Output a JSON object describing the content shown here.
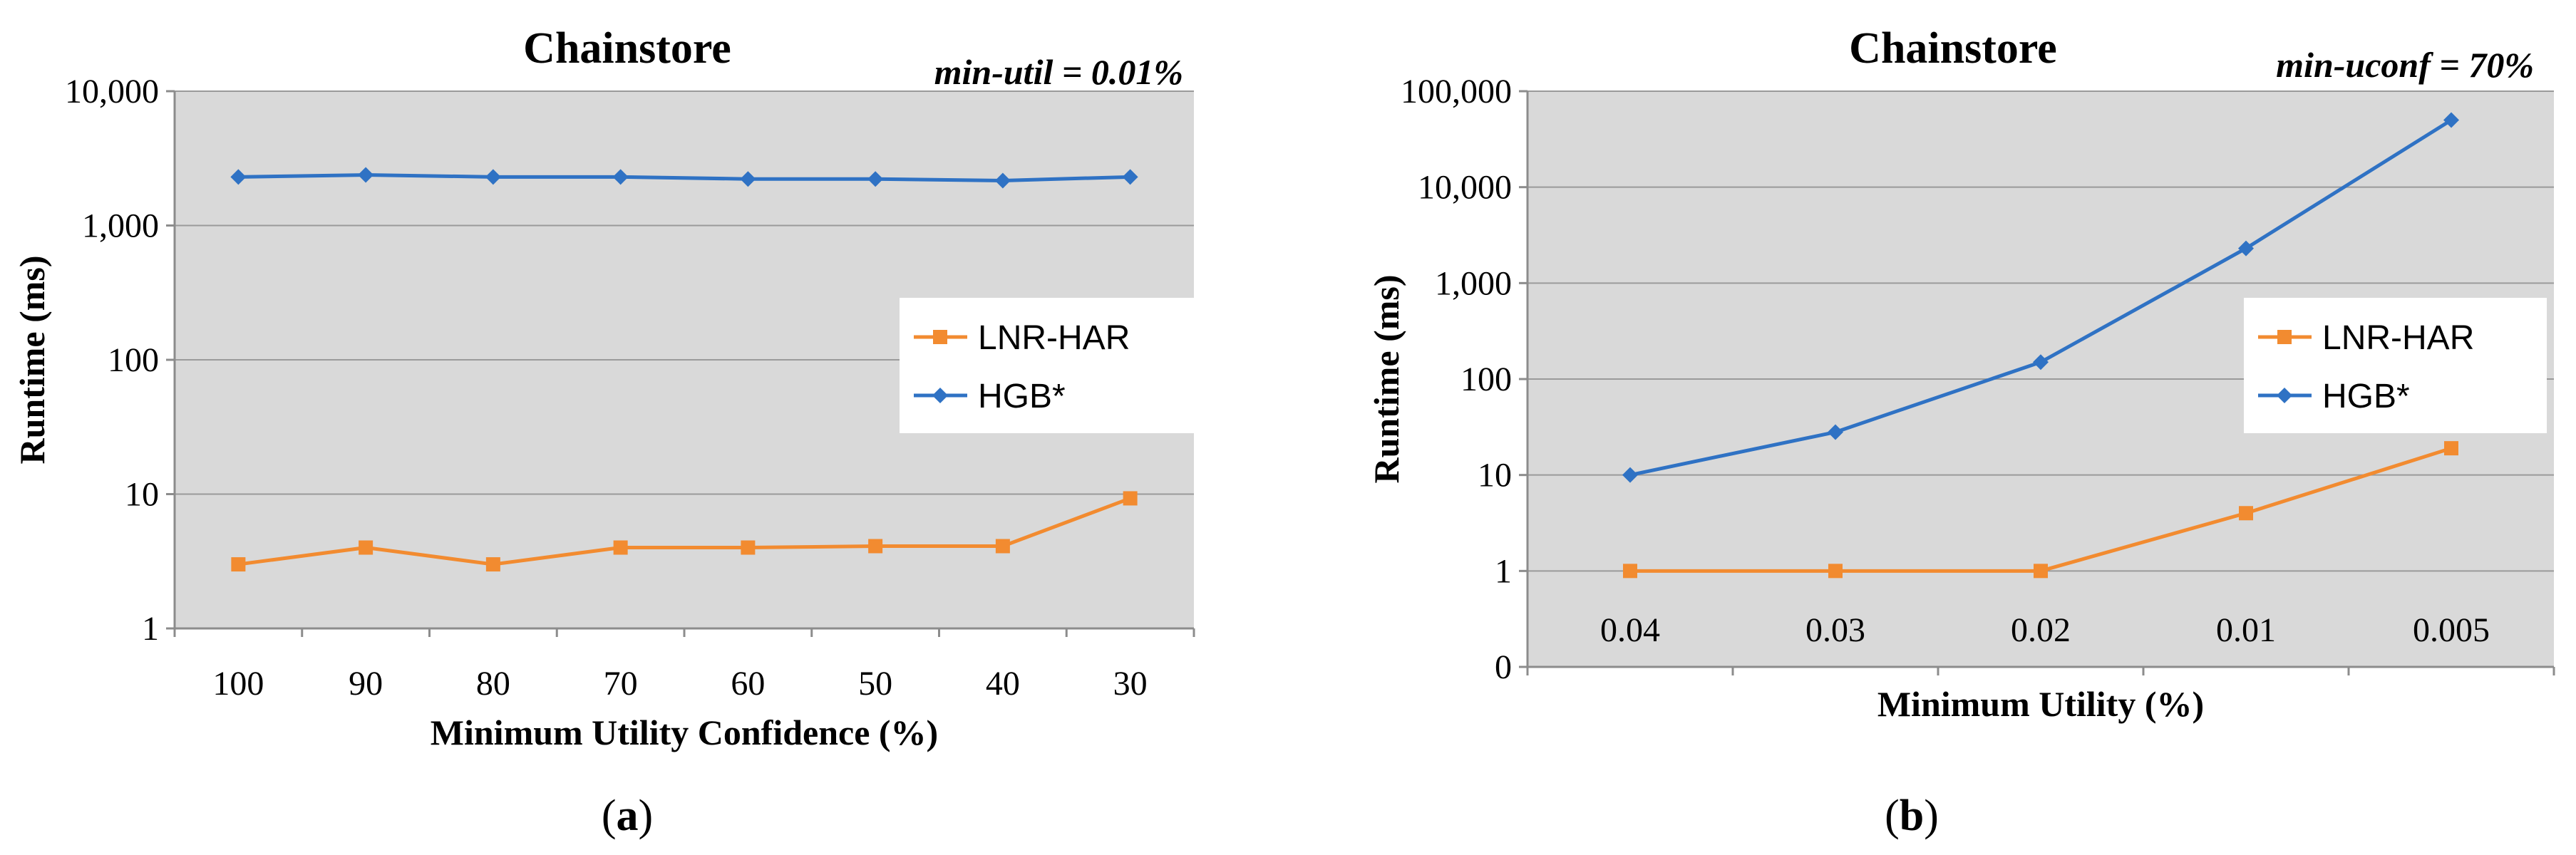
{
  "chart_data": [
    {
      "type": "line",
      "title": "Chainstore",
      "annotation": "min-util = 0.01%",
      "xlabel": "Minimum Utility Confidence (%)",
      "ylabel": "Runtime (ms)",
      "yscale": "log",
      "ylim": [
        1,
        10000
      ],
      "yticks": [
        1,
        10,
        100,
        1000,
        10000
      ],
      "ytick_labels": [
        "1",
        "10",
        "100",
        "1,000",
        "10,000"
      ],
      "categories": [
        "100",
        "90",
        "80",
        "70",
        "60",
        "50",
        "40",
        "30"
      ],
      "series": [
        {
          "name": "LNR-HAR",
          "color": "#f28b30",
          "marker": "square",
          "values": [
            3.0,
            4.0,
            3.0,
            4.0,
            4.0,
            4.1,
            4.1,
            9.3
          ]
        },
        {
          "name": "HGB*",
          "color": "#2f72c4",
          "marker": "diamond",
          "values": [
            2300,
            2380,
            2300,
            2300,
            2220,
            2220,
            2160,
            2300
          ]
        }
      ],
      "legend_position": "right-middle",
      "panel_label": "(a)"
    },
    {
      "type": "line",
      "title": "Chainstore",
      "annotation": "min-uconf = 70%",
      "xlabel": "Minimum Utility (%)",
      "ylabel": "Runtime (ms)",
      "yscale": "log",
      "ylim": [
        0.1,
        100000
      ],
      "yticks": [
        0.1,
        1,
        10,
        100,
        1000,
        10000,
        100000
      ],
      "ytick_labels": [
        "0",
        "1",
        "10",
        "100",
        "1,000",
        "10,000",
        "100,000"
      ],
      "categories": [
        "0.04",
        "0.03",
        "0.02",
        "0.01",
        "0.005"
      ],
      "series": [
        {
          "name": "LNR-HAR",
          "color": "#f28b30",
          "marker": "square",
          "values": [
            1,
            1,
            1,
            4,
            19
          ]
        },
        {
          "name": "HGB*",
          "color": "#2f72c4",
          "marker": "diamond",
          "values": [
            10,
            28,
            150,
            2300,
            50000
          ]
        }
      ],
      "legend_position": "right-middle",
      "panel_label": "(b)"
    }
  ]
}
